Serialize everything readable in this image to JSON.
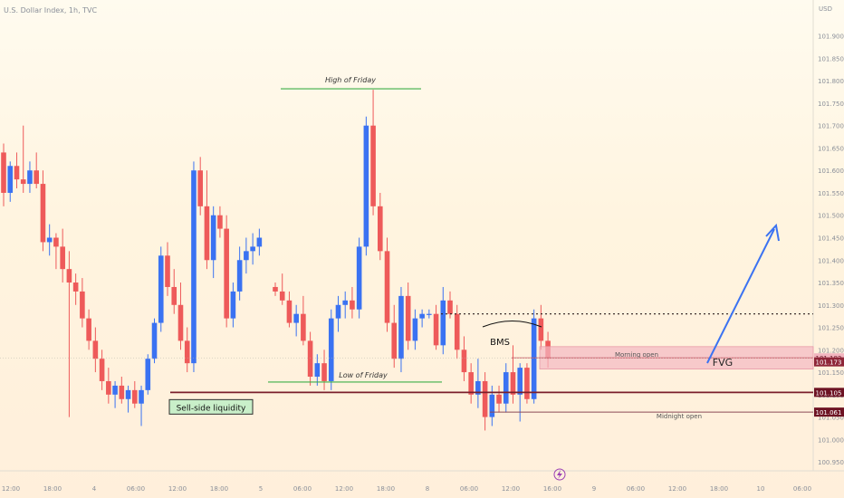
{
  "header": {
    "symbol_line": "U.S. Dollar Index, 1h, TVC"
  },
  "colors": {
    "up": "#3a72f2",
    "down": "#ee5a5a",
    "green_line": "#3cae47",
    "dark_red": "#7a1f2b",
    "fvg_fill": "#f3b8c2",
    "arrow": "#3a72f2",
    "axis_text": "#8a8f99"
  },
  "chart_data": {
    "type": "candlestick",
    "title": "U.S. Dollar Index, 1h, TVC",
    "ylim": [
      100.93,
      101.97
    ],
    "y_ticks": [
      "101.900",
      "101.850",
      "101.800",
      "101.750",
      "101.700",
      "101.650",
      "101.600",
      "101.550",
      "101.500",
      "101.450",
      "101.400",
      "101.350",
      "101.300",
      "101.250",
      "101.200",
      "101.150",
      "101.100",
      "101.050",
      "101.000",
      "100.950"
    ],
    "x_tick_labels": [
      "12:00",
      "18:00",
      "4",
      "06:00",
      "12:00",
      "18:00",
      "5",
      "06:00",
      "12:00",
      "18:00",
      "8",
      "06:00",
      "12:00",
      "16:00",
      "9",
      "06:00",
      "12:00",
      "18:00",
      "10",
      "06:00"
    ],
    "currency_label": "USD",
    "candles": [
      [
        101.64,
        101.66,
        101.52,
        101.55
      ],
      [
        101.55,
        101.62,
        101.53,
        101.61
      ],
      [
        101.61,
        101.64,
        101.56,
        101.58
      ],
      [
        101.58,
        101.7,
        101.55,
        101.57
      ],
      [
        101.57,
        101.62,
        101.55,
        101.6
      ],
      [
        101.6,
        101.64,
        101.56,
        101.57
      ],
      [
        101.57,
        101.6,
        101.42,
        101.44
      ],
      [
        101.44,
        101.48,
        101.41,
        101.45
      ],
      [
        101.45,
        101.46,
        101.38,
        101.43
      ],
      [
        101.43,
        101.47,
        101.35,
        101.38
      ],
      [
        101.38,
        101.42,
        101.05,
        101.35
      ],
      [
        101.35,
        101.37,
        101.3,
        101.33
      ],
      [
        101.33,
        101.36,
        101.25,
        101.27
      ],
      [
        101.27,
        101.29,
        101.2,
        101.22
      ],
      [
        101.22,
        101.25,
        101.15,
        101.18
      ],
      [
        101.18,
        101.2,
        101.11,
        101.13
      ],
      [
        101.13,
        101.16,
        101.08,
        101.1
      ],
      [
        101.1,
        101.13,
        101.07,
        101.12
      ],
      [
        101.12,
        101.14,
        101.08,
        101.09
      ],
      [
        101.09,
        101.12,
        101.06,
        101.11
      ],
      [
        101.11,
        101.13,
        101.07,
        101.08
      ],
      [
        101.08,
        101.12,
        101.03,
        101.11
      ],
      [
        101.11,
        101.19,
        101.1,
        101.18
      ],
      [
        101.18,
        101.27,
        101.17,
        101.26
      ],
      [
        101.26,
        101.43,
        101.24,
        101.41
      ],
      [
        101.41,
        101.44,
        101.32,
        101.34
      ],
      [
        101.34,
        101.38,
        101.28,
        101.3
      ],
      [
        101.3,
        101.35,
        101.2,
        101.22
      ],
      [
        101.22,
        101.25,
        101.15,
        101.17
      ],
      [
        101.17,
        101.62,
        101.15,
        101.6
      ],
      [
        101.6,
        101.63,
        101.5,
        101.52
      ],
      [
        101.52,
        101.6,
        101.38,
        101.4
      ],
      [
        101.4,
        101.52,
        101.36,
        101.5
      ],
      [
        101.5,
        101.52,
        101.45,
        101.47
      ],
      [
        101.47,
        101.5,
        101.25,
        101.27
      ],
      [
        101.27,
        101.35,
        101.25,
        101.33
      ],
      [
        101.33,
        101.43,
        101.31,
        101.4
      ],
      [
        101.4,
        101.45,
        101.37,
        101.42
      ],
      [
        101.42,
        101.46,
        101.39,
        101.43
      ],
      [
        101.43,
        101.47,
        101.41,
        101.45
      ],
      [
        101.34,
        101.35,
        101.32,
        101.33
      ],
      [
        101.33,
        101.37,
        101.3,
        101.31
      ],
      [
        101.31,
        101.33,
        101.25,
        101.26
      ],
      [
        101.26,
        101.3,
        101.23,
        101.28
      ],
      [
        101.28,
        101.32,
        101.21,
        101.22
      ],
      [
        101.22,
        101.24,
        101.12,
        101.14
      ],
      [
        101.14,
        101.19,
        101.12,
        101.17
      ],
      [
        101.17,
        101.2,
        101.11,
        101.13
      ],
      [
        101.13,
        101.29,
        101.11,
        101.27
      ],
      [
        101.27,
        101.32,
        101.24,
        101.3
      ],
      [
        101.3,
        101.33,
        101.27,
        101.31
      ],
      [
        101.31,
        101.34,
        101.27,
        101.29
      ],
      [
        101.29,
        101.45,
        101.27,
        101.43
      ],
      [
        101.43,
        101.72,
        101.41,
        101.7
      ],
      [
        101.7,
        101.78,
        101.5,
        101.52
      ],
      [
        101.52,
        101.55,
        101.4,
        101.42
      ],
      [
        101.42,
        101.45,
        101.24,
        101.26
      ],
      [
        101.26,
        101.3,
        101.16,
        101.18
      ],
      [
        101.18,
        101.34,
        101.15,
        101.32
      ],
      [
        101.32,
        101.35,
        101.2,
        101.22
      ],
      [
        101.22,
        101.29,
        101.2,
        101.27
      ],
      [
        101.27,
        101.29,
        101.25,
        101.28
      ],
      [
        101.28,
        101.29,
        101.27,
        101.28
      ],
      [
        101.28,
        101.3,
        101.2,
        101.21
      ],
      [
        101.21,
        101.34,
        101.19,
        101.31
      ],
      [
        101.31,
        101.33,
        101.27,
        101.28
      ],
      [
        101.28,
        101.3,
        101.18,
        101.2
      ],
      [
        101.2,
        101.23,
        101.13,
        101.15
      ],
      [
        101.15,
        101.17,
        101.08,
        101.1
      ],
      [
        101.1,
        101.18,
        101.07,
        101.13
      ],
      [
        101.13,
        101.15,
        101.02,
        101.05
      ],
      [
        101.05,
        101.12,
        101.03,
        101.1
      ],
      [
        101.1,
        101.12,
        101.06,
        101.08
      ],
      [
        101.08,
        101.17,
        101.06,
        101.15
      ],
      [
        101.15,
        101.21,
        101.08,
        101.1
      ],
      [
        101.1,
        101.17,
        101.04,
        101.16
      ],
      [
        101.16,
        101.17,
        101.08,
        101.09
      ],
      [
        101.09,
        101.29,
        101.08,
        101.27
      ],
      [
        101.27,
        101.3,
        101.2,
        101.22
      ],
      [
        101.22,
        101.24,
        101.16,
        101.18
      ]
    ],
    "annotations": {
      "high_of_friday": "High of Friday",
      "low_of_friday": "Low of Friday",
      "sell_side_liquidity": "Sell-side liquidity",
      "bms": "BMS",
      "morning_open": "Morning open",
      "midnight_open": "Midnight open",
      "fvg": "FVG"
    },
    "levels": {
      "high_of_friday": 101.78,
      "low_of_friday": 101.128,
      "sell_side_liquidity": 101.105,
      "morning_open": 101.182,
      "fvg_low": 101.173,
      "midnight_open": 101.061,
      "dotted": 101.28,
      "fvg_top": 101.207,
      "fvg_bottom": 101.157
    },
    "price_labels": {
      "morning_open": "101.182",
      "fvg_low": "101.173",
      "sell_side_liquidity": "101.105",
      "midnight_open": "101.061"
    }
  }
}
